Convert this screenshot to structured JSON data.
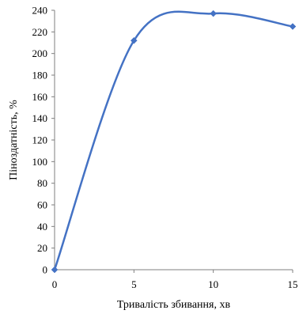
{
  "chart_data": {
    "type": "scatter",
    "title": "",
    "xlabel": "Тривалість збивання, хв",
    "ylabel": "Піноздатність, %",
    "x_ticks": [
      "0",
      "5",
      "10",
      "15"
    ],
    "y_ticks": [
      "0",
      "20",
      "40",
      "60",
      "80",
      "100",
      "120",
      "140",
      "160",
      "180",
      "200",
      "220",
      "240"
    ],
    "xlim": [
      0,
      15
    ],
    "ylim": [
      0,
      240
    ],
    "grid": false,
    "legend": "none",
    "smooth": true,
    "marker": "diamond",
    "series": [
      {
        "x": [
          0,
          5,
          10,
          15
        ],
        "values": [
          0,
          212,
          237,
          225
        ]
      }
    ],
    "colors": {
      "series": "#4472C4",
      "axis": "#7f7f7f"
    }
  }
}
